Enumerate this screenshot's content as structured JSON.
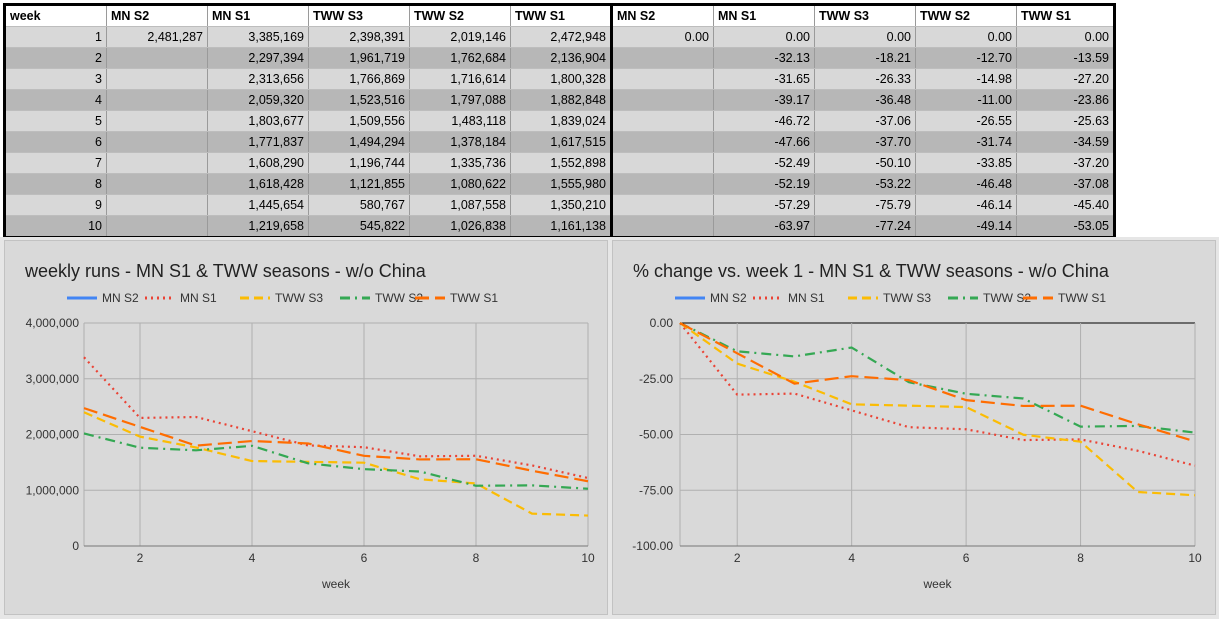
{
  "table": {
    "headers": [
      "week",
      "MN S2",
      "MN S1",
      "TWW S3",
      "TWW S2",
      "TWW S1",
      "MN S2",
      "MN S1",
      "TWW S3",
      "TWW S2",
      "TWW S1"
    ],
    "rows": [
      [
        "1",
        "2,481,287",
        "3,385,169",
        "2,398,391",
        "2,019,146",
        "2,472,948",
        "0.00",
        "0.00",
        "0.00",
        "0.00",
        "0.00"
      ],
      [
        "2",
        "",
        "2,297,394",
        "1,961,719",
        "1,762,684",
        "2,136,904",
        "",
        "-32.13",
        "-18.21",
        "-12.70",
        "-13.59"
      ],
      [
        "3",
        "",
        "2,313,656",
        "1,766,869",
        "1,716,614",
        "1,800,328",
        "",
        "-31.65",
        "-26.33",
        "-14.98",
        "-27.20"
      ],
      [
        "4",
        "",
        "2,059,320",
        "1,523,516",
        "1,797,088",
        "1,882,848",
        "",
        "-39.17",
        "-36.48",
        "-11.00",
        "-23.86"
      ],
      [
        "5",
        "",
        "1,803,677",
        "1,509,556",
        "1,483,118",
        "1,839,024",
        "",
        "-46.72",
        "-37.06",
        "-26.55",
        "-25.63"
      ],
      [
        "6",
        "",
        "1,771,837",
        "1,494,294",
        "1,378,184",
        "1,617,515",
        "",
        "-47.66",
        "-37.70",
        "-31.74",
        "-34.59"
      ],
      [
        "7",
        "",
        "1,608,290",
        "1,196,744",
        "1,335,736",
        "1,552,898",
        "",
        "-52.49",
        "-50.10",
        "-33.85",
        "-37.20"
      ],
      [
        "8",
        "",
        "1,618,428",
        "1,121,855",
        "1,080,622",
        "1,555,980",
        "",
        "-52.19",
        "-53.22",
        "-46.48",
        "-37.08"
      ],
      [
        "9",
        "",
        "1,445,654",
        "580,767",
        "1,087,558",
        "1,350,210",
        "",
        "-57.29",
        "-75.79",
        "-46.14",
        "-45.40"
      ],
      [
        "10",
        "",
        "1,219,658",
        "545,822",
        "1,026,838",
        "1,161,138",
        "",
        "-63.97",
        "-77.24",
        "-49.14",
        "-53.05"
      ]
    ]
  },
  "chart_data": [
    {
      "type": "line",
      "title": "weekly runs - MN S1 & TWW seasons - w/o China",
      "xlabel": "week",
      "ylabel": "",
      "x": [
        1,
        2,
        3,
        4,
        5,
        6,
        7,
        8,
        9,
        10
      ],
      "xlim": [
        1,
        10
      ],
      "xticks": [
        2,
        4,
        6,
        8,
        10
      ],
      "ylim": [
        0,
        4000000
      ],
      "yticks": [
        0,
        1000000,
        2000000,
        3000000,
        4000000
      ],
      "ytick_labels": [
        "0",
        "1,000,000",
        "2,000,000",
        "3,000,000",
        "4,000,000"
      ],
      "grid": true,
      "legend_position": "top",
      "series": [
        {
          "name": "MN S2",
          "color": "#4285f4",
          "dash": "solid",
          "values": [
            2481287,
            null,
            null,
            null,
            null,
            null,
            null,
            null,
            null,
            null
          ]
        },
        {
          "name": "MN S1",
          "color": "#ea4335",
          "dash": "dotted",
          "values": [
            3385169,
            2297394,
            2313656,
            2059320,
            1803677,
            1771837,
            1608290,
            1618428,
            1445654,
            1219658
          ]
        },
        {
          "name": "TWW S3",
          "color": "#fbbc04",
          "dash": "dashed",
          "values": [
            2398391,
            1961719,
            1766869,
            1523516,
            1509556,
            1494294,
            1196744,
            1121855,
            580767,
            545822
          ]
        },
        {
          "name": "TWW S2",
          "color": "#34a853",
          "dash": "dashdot",
          "values": [
            2019146,
            1762684,
            1716614,
            1797088,
            1483118,
            1378184,
            1335736,
            1080622,
            1087558,
            1026838
          ]
        },
        {
          "name": "TWW S1",
          "color": "#ff6d01",
          "dash": "longdash",
          "values": [
            2472948,
            2136904,
            1800328,
            1882848,
            1839024,
            1617515,
            1552898,
            1555980,
            1350210,
            1161138
          ]
        }
      ]
    },
    {
      "type": "line",
      "title": "% change vs. week 1 - MN S1 & TWW seasons - w/o China",
      "xlabel": "week",
      "ylabel": "",
      "x": [
        1,
        2,
        3,
        4,
        5,
        6,
        7,
        8,
        9,
        10
      ],
      "xlim": [
        1,
        10
      ],
      "xticks": [
        2,
        4,
        6,
        8,
        10
      ],
      "ylim": [
        -100,
        0
      ],
      "yticks": [
        0,
        -25,
        -50,
        -75,
        -100
      ],
      "ytick_labels": [
        "0.00",
        "-25.00",
        "-50.00",
        "-75.00",
        "-100.00"
      ],
      "grid": true,
      "legend_position": "top",
      "series": [
        {
          "name": "MN S2",
          "color": "#4285f4",
          "dash": "solid",
          "values": [
            0,
            null,
            null,
            null,
            null,
            null,
            null,
            null,
            null,
            null
          ]
        },
        {
          "name": "MN S1",
          "color": "#ea4335",
          "dash": "dotted",
          "values": [
            0,
            -32.13,
            -31.65,
            -39.17,
            -46.72,
            -47.66,
            -52.49,
            -52.19,
            -57.29,
            -63.97
          ]
        },
        {
          "name": "TWW S3",
          "color": "#fbbc04",
          "dash": "dashed",
          "values": [
            0,
            -18.21,
            -26.33,
            -36.48,
            -37.06,
            -37.7,
            -50.1,
            -53.22,
            -75.79,
            -77.24
          ]
        },
        {
          "name": "TWW S2",
          "color": "#34a853",
          "dash": "dashdot",
          "values": [
            0,
            -12.7,
            -14.98,
            -11.0,
            -26.55,
            -31.74,
            -33.85,
            -46.48,
            -46.14,
            -49.14
          ]
        },
        {
          "name": "TWW S1",
          "color": "#ff6d01",
          "dash": "longdash",
          "values": [
            0,
            -13.59,
            -27.2,
            -23.86,
            -25.63,
            -34.59,
            -37.2,
            -37.08,
            -45.4,
            -53.05
          ]
        }
      ]
    }
  ]
}
